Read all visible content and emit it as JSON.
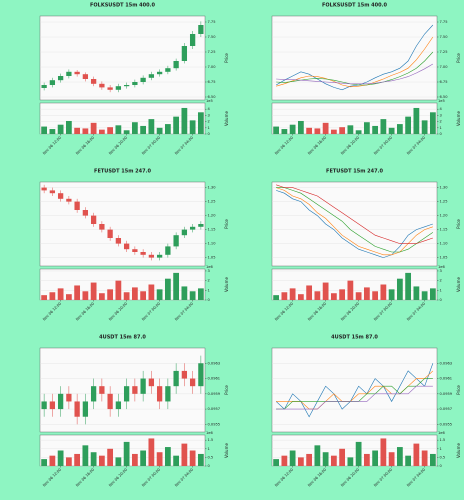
{
  "chart_data": [
    {
      "type": "candlestick",
      "title": "FOLKSUSDT 15m 400.0",
      "ylabel": "Price",
      "volume_label": "Volume",
      "volume_offset": "1e5",
      "up_color": "#2e9e5b",
      "down_color": "#e0524e",
      "grid": true,
      "categories": [
        null,
        null,
        "Nov 06 12:00",
        null,
        null,
        null,
        "Nov 06 16:00",
        null,
        null,
        null,
        "Nov 06 20:00",
        null,
        null,
        null,
        "Nov 07 00:00",
        null,
        null,
        null,
        "Nov 07 04:00",
        null
      ],
      "open": [
        6.65,
        6.7,
        6.78,
        6.85,
        6.92,
        6.88,
        6.8,
        6.72,
        6.66,
        6.62,
        6.68,
        6.7,
        6.75,
        6.82,
        6.88,
        6.92,
        6.98,
        7.1,
        7.35,
        7.55
      ],
      "high": [
        6.74,
        6.82,
        6.89,
        6.96,
        6.95,
        6.91,
        6.84,
        6.76,
        6.7,
        6.72,
        6.74,
        6.79,
        6.86,
        6.92,
        6.96,
        7.02,
        7.14,
        7.4,
        7.6,
        7.76
      ],
      "low": [
        6.61,
        6.66,
        6.74,
        6.81,
        6.84,
        6.76,
        6.68,
        6.62,
        6.58,
        6.58,
        6.64,
        6.66,
        6.71,
        6.78,
        6.84,
        6.88,
        6.94,
        7.06,
        7.3,
        7.5
      ],
      "close": [
        6.7,
        6.78,
        6.85,
        6.92,
        6.88,
        6.8,
        6.72,
        6.66,
        6.62,
        6.68,
        6.7,
        6.75,
        6.82,
        6.88,
        6.92,
        6.98,
        7.1,
        7.35,
        7.55,
        7.7
      ],
      "volume": [
        1.2,
        0.8,
        1.5,
        2.1,
        1.0,
        0.9,
        1.8,
        0.7,
        1.1,
        1.4,
        0.6,
        1.9,
        1.3,
        2.4,
        1.0,
        1.6,
        2.8,
        4.2,
        2.2,
        3.5
      ],
      "ylim": [
        6.45,
        7.85
      ],
      "yticks": [
        {
          "value": 6.5,
          "label": "6.50"
        },
        {
          "value": 6.75,
          "label": "6.75"
        },
        {
          "value": 7,
          "label": "7.00"
        },
        {
          "value": 7.25,
          "label": "7.25"
        },
        {
          "value": 7.5,
          "label": "7.50"
        },
        {
          "value": 7.75,
          "label": "7.75"
        }
      ],
      "vlim": [
        0,
        5
      ],
      "vticks": [
        0,
        1,
        2,
        3,
        4
      ]
    },
    {
      "type": "line",
      "title": "FOLKSUSDT 15m 400.0",
      "ylabel": "Price",
      "volume_label": "Volume",
      "volume_offset": "1e5",
      "up_color": "#2e9e5b",
      "down_color": "#e0524e",
      "grid": true,
      "categories": [
        null,
        null,
        "Nov 06 12:00",
        null,
        null,
        null,
        "Nov 06 16:00",
        null,
        null,
        null,
        "Nov 06 20:00",
        null,
        null,
        null,
        "Nov 07 00:00",
        null,
        null,
        null,
        "Nov 07 04:00",
        null
      ],
      "series": [
        {
          "color": "#1f77b4",
          "values": [
            6.7,
            6.78,
            6.85,
            6.92,
            6.88,
            6.8,
            6.72,
            6.66,
            6.62,
            6.68,
            6.7,
            6.75,
            6.82,
            6.88,
            6.92,
            6.98,
            7.1,
            7.35,
            7.55,
            7.7
          ]
        },
        {
          "color": "#ff7f0e",
          "values": [
            6.68,
            6.72,
            6.77,
            6.82,
            6.85,
            6.84,
            6.81,
            6.76,
            6.7,
            6.67,
            6.68,
            6.7,
            6.75,
            6.8,
            6.86,
            6.91,
            6.98,
            7.12,
            7.3,
            7.5
          ]
        },
        {
          "color": "#2ca02c",
          "values": [
            6.75,
            6.74,
            6.76,
            6.78,
            6.8,
            6.81,
            6.8,
            6.78,
            6.75,
            6.72,
            6.7,
            6.7,
            6.72,
            6.75,
            6.79,
            6.84,
            6.9,
            6.98,
            7.1,
            7.25
          ]
        },
        {
          "color": "#9467bd",
          "values": [
            6.8,
            6.79,
            6.79,
            6.78,
            6.77,
            6.76,
            6.75,
            6.74,
            6.73,
            6.72,
            6.72,
            6.72,
            6.73,
            6.75,
            6.77,
            6.8,
            6.84,
            6.9,
            6.97,
            7.05
          ]
        }
      ],
      "volume": [
        1.2,
        0.8,
        1.5,
        2.1,
        1.0,
        0.9,
        1.8,
        0.7,
        1.1,
        1.4,
        0.6,
        1.9,
        1.3,
        2.4,
        1.0,
        1.6,
        2.8,
        4.2,
        2.2,
        3.5
      ],
      "ylim": [
        6.45,
        7.85
      ],
      "yticks": [
        {
          "value": 6.5,
          "label": "6.50"
        },
        {
          "value": 6.75,
          "label": "6.75"
        },
        {
          "value": 7,
          "label": "7.00"
        },
        {
          "value": 7.25,
          "label": "7.25"
        },
        {
          "value": 7.5,
          "label": "7.50"
        },
        {
          "value": 7.75,
          "label": "7.75"
        }
      ],
      "vlim": [
        0,
        5
      ],
      "vticks": [
        0,
        1,
        2,
        3,
        4
      ]
    },
    {
      "type": "candlestick",
      "title": "FETUSDT 15m 247.0",
      "ylabel": "Price",
      "volume_label": "Volume",
      "volume_offset": "1e6",
      "up_color": "#2e9e5b",
      "down_color": "#e0524e",
      "grid": true,
      "categories": [
        null,
        null,
        "Nov 06 12:00",
        null,
        null,
        null,
        "Nov 06 16:00",
        null,
        null,
        null,
        "Nov 06 20:00",
        null,
        null,
        null,
        "Nov 07 00:00",
        null,
        null,
        null,
        "Nov 07 04:00",
        null
      ],
      "open": [
        1.3,
        1.29,
        1.28,
        1.26,
        1.25,
        1.22,
        1.2,
        1.17,
        1.15,
        1.12,
        1.1,
        1.08,
        1.07,
        1.06,
        1.05,
        1.06,
        1.09,
        1.13,
        1.15,
        1.16
      ],
      "high": [
        1.31,
        1.3,
        1.29,
        1.27,
        1.26,
        1.23,
        1.21,
        1.18,
        1.16,
        1.13,
        1.11,
        1.09,
        1.08,
        1.07,
        1.07,
        1.1,
        1.14,
        1.16,
        1.17,
        1.18
      ],
      "low": [
        1.28,
        1.27,
        1.25,
        1.24,
        1.21,
        1.19,
        1.16,
        1.14,
        1.11,
        1.09,
        1.07,
        1.06,
        1.05,
        1.04,
        1.04,
        1.05,
        1.08,
        1.12,
        1.14,
        1.15
      ],
      "close": [
        1.29,
        1.28,
        1.26,
        1.25,
        1.22,
        1.2,
        1.17,
        1.15,
        1.12,
        1.1,
        1.08,
        1.07,
        1.06,
        1.05,
        1.06,
        1.09,
        1.13,
        1.15,
        1.16,
        1.17
      ],
      "volume": [
        0.5,
        0.8,
        1.2,
        0.6,
        1.5,
        0.9,
        1.8,
        0.7,
        1.1,
        2.0,
        0.8,
        1.3,
        0.9,
        1.6,
        1.1,
        2.2,
        2.8,
        1.4,
        0.9,
        1.2
      ],
      "ylim": [
        1.02,
        1.32
      ],
      "yticks": [
        1.05,
        {
          "value": 1.1,
          "label": "1.10"
        },
        1.15,
        {
          "value": 1.2,
          "label": "1.20"
        },
        1.25,
        {
          "value": 1.3,
          "label": "1.30"
        }
      ],
      "vlim": [
        0,
        3.2
      ],
      "vticks": [
        0,
        1,
        2,
        3
      ]
    },
    {
      "type": "line",
      "title": "FETUSDT 15m 247.0",
      "ylabel": "Price",
      "volume_label": "Volume",
      "volume_offset": "1e6",
      "up_color": "#2e9e5b",
      "down_color": "#e0524e",
      "grid": true,
      "categories": [
        null,
        null,
        "Nov 06 12:00",
        null,
        null,
        null,
        "Nov 06 16:00",
        null,
        null,
        null,
        "Nov 06 20:00",
        null,
        null,
        null,
        "Nov 07 00:00",
        null,
        null,
        null,
        "Nov 07 04:00",
        null
      ],
      "series": [
        {
          "color": "#1f77b4",
          "values": [
            1.29,
            1.28,
            1.26,
            1.25,
            1.22,
            1.2,
            1.17,
            1.15,
            1.12,
            1.1,
            1.08,
            1.07,
            1.06,
            1.05,
            1.06,
            1.09,
            1.13,
            1.15,
            1.16,
            1.17
          ]
        },
        {
          "color": "#ff7f0e",
          "values": [
            1.3,
            1.29,
            1.27,
            1.26,
            1.24,
            1.21,
            1.19,
            1.16,
            1.13,
            1.11,
            1.09,
            1.08,
            1.07,
            1.06,
            1.06,
            1.07,
            1.1,
            1.13,
            1.15,
            1.16
          ]
        },
        {
          "color": "#2ca02c",
          "values": [
            1.3,
            1.3,
            1.29,
            1.28,
            1.26,
            1.24,
            1.22,
            1.2,
            1.18,
            1.15,
            1.13,
            1.11,
            1.09,
            1.08,
            1.07,
            1.07,
            1.08,
            1.1,
            1.12,
            1.14
          ]
        },
        {
          "color": "#d62728",
          "values": [
            1.31,
            1.3,
            1.3,
            1.29,
            1.28,
            1.27,
            1.25,
            1.23,
            1.21,
            1.19,
            1.17,
            1.15,
            1.13,
            1.12,
            1.11,
            1.1,
            1.1,
            1.1,
            1.11,
            1.12
          ]
        }
      ],
      "volume": [
        0.5,
        0.8,
        1.2,
        0.6,
        1.5,
        0.9,
        1.8,
        0.7,
        1.1,
        2.0,
        0.8,
        1.3,
        0.9,
        1.6,
        1.1,
        2.2,
        2.8,
        1.4,
        0.9,
        1.2
      ],
      "ylim": [
        1.02,
        1.32
      ],
      "yticks": [
        1.05,
        {
          "value": 1.1,
          "label": "1.10"
        },
        1.15,
        {
          "value": 1.2,
          "label": "1.20"
        },
        1.25,
        {
          "value": 1.3,
          "label": "1.30"
        }
      ],
      "vlim": [
        0,
        3.2
      ],
      "vticks": [
        0,
        1,
        2,
        3
      ]
    },
    {
      "type": "candlestick",
      "title": "4USDT 15m 87.0",
      "ylabel": "Price",
      "volume_label": "Volume",
      "volume_offset": "1e6",
      "up_color": "#2e9e5b",
      "down_color": "#e0524e",
      "grid": true,
      "categories": [
        null,
        null,
        "Nov 06 12:00",
        null,
        null,
        null,
        "Nov 06 16:00",
        null,
        null,
        null,
        "Nov 06 20:00",
        null,
        null,
        null,
        "Nov 07 00:00",
        null,
        null,
        null,
        "Nov 07 04:00",
        null
      ],
      "open": [
        0.0957,
        0.0958,
        0.0957,
        0.0959,
        0.0958,
        0.0956,
        0.0958,
        0.096,
        0.0959,
        0.0957,
        0.0958,
        0.096,
        0.0959,
        0.0961,
        0.096,
        0.0958,
        0.096,
        0.0962,
        0.0961,
        0.096
      ],
      "high": [
        0.0959,
        0.0959,
        0.096,
        0.096,
        0.0959,
        0.0959,
        0.0961,
        0.0961,
        0.096,
        0.0959,
        0.0961,
        0.0961,
        0.0962,
        0.0962,
        0.0961,
        0.0961,
        0.0963,
        0.0963,
        0.0962,
        0.0964
      ],
      "low": [
        0.0956,
        0.0956,
        0.0956,
        0.0957,
        0.0955,
        0.0955,
        0.0957,
        0.0958,
        0.0956,
        0.0956,
        0.0957,
        0.0958,
        0.0958,
        0.0959,
        0.0957,
        0.0957,
        0.0959,
        0.096,
        0.0959,
        0.0959
      ],
      "close": [
        0.0958,
        0.0957,
        0.0959,
        0.0958,
        0.0956,
        0.0958,
        0.096,
        0.0959,
        0.0957,
        0.0958,
        0.096,
        0.0959,
        0.0961,
        0.096,
        0.0958,
        0.096,
        0.0962,
        0.0961,
        0.096,
        0.0963
      ],
      "volume": [
        0.4,
        0.6,
        0.9,
        0.5,
        0.7,
        1.2,
        0.8,
        0.6,
        1.0,
        0.5,
        1.4,
        0.7,
        0.9,
        1.6,
        0.8,
        1.1,
        0.6,
        1.3,
        0.9,
        0.7
      ],
      "ylim": [
        0.0954,
        0.0965
      ],
      "yticks": [
        0.0955,
        0.0957,
        0.0959,
        0.0961,
        0.0963
      ],
      "vlim": [
        0,
        1.8
      ],
      "vticks": [
        0,
        0.5,
        1,
        1.5
      ]
    },
    {
      "type": "line",
      "title": "4USDT 15m 87.0",
      "ylabel": "Price",
      "volume_label": "Volume",
      "volume_offset": "1e6",
      "up_color": "#2e9e5b",
      "down_color": "#e0524e",
      "grid": true,
      "categories": [
        null,
        null,
        "Nov 06 12:00",
        null,
        null,
        null,
        "Nov 06 16:00",
        null,
        null,
        null,
        "Nov 06 20:00",
        null,
        null,
        null,
        "Nov 07 00:00",
        null,
        null,
        null,
        "Nov 07 04:00",
        null
      ],
      "series": [
        {
          "color": "#1f77b4",
          "values": [
            0.0958,
            0.0957,
            0.0959,
            0.0958,
            0.0956,
            0.0958,
            0.096,
            0.0959,
            0.0957,
            0.0958,
            0.096,
            0.0959,
            0.0961,
            0.096,
            0.0958,
            0.096,
            0.0962,
            0.0961,
            0.096,
            0.0963
          ]
        },
        {
          "color": "#ff7f0e",
          "values": [
            0.0958,
            0.0958,
            0.0958,
            0.0958,
            0.0957,
            0.0957,
            0.0958,
            0.0959,
            0.0958,
            0.0958,
            0.0959,
            0.0959,
            0.096,
            0.096,
            0.0959,
            0.0959,
            0.096,
            0.0961,
            0.0961,
            0.0962
          ]
        },
        {
          "color": "#2ca02c",
          "values": [
            0.0957,
            0.0957,
            0.0958,
            0.0958,
            0.0958,
            0.0958,
            0.0958,
            0.0958,
            0.0958,
            0.0958,
            0.0958,
            0.0959,
            0.0959,
            0.096,
            0.096,
            0.0959,
            0.096,
            0.096,
            0.0961,
            0.0961
          ]
        },
        {
          "color": "#9467bd",
          "values": [
            0.0957,
            0.0957,
            0.0957,
            0.0957,
            0.0957,
            0.0957,
            0.0958,
            0.0958,
            0.0958,
            0.0958,
            0.0958,
            0.0958,
            0.0959,
            0.0959,
            0.0959,
            0.0959,
            0.0959,
            0.096,
            0.096,
            0.096
          ]
        }
      ],
      "volume": [
        0.4,
        0.6,
        0.9,
        0.5,
        0.7,
        1.2,
        0.8,
        0.6,
        1.0,
        0.5,
        1.4,
        0.7,
        0.9,
        1.6,
        0.8,
        1.1,
        0.6,
        1.3,
        0.9,
        0.7
      ],
      "ylim": [
        0.0954,
        0.0965
      ],
      "yticks": [
        0.0955,
        0.0957,
        0.0959,
        0.0961,
        0.0963
      ],
      "vlim": [
        0,
        1.8
      ],
      "vticks": [
        0,
        0.5,
        1,
        1.5
      ]
    }
  ]
}
